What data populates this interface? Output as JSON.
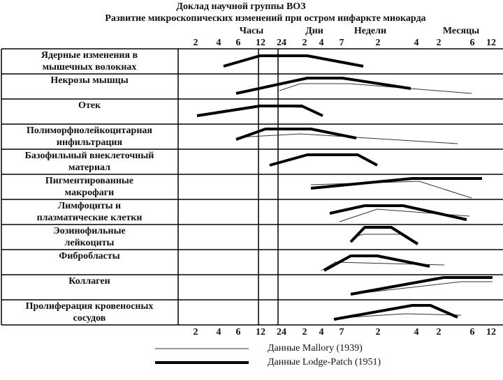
{
  "header": {
    "title": "Доклад научной группы ВОЗ",
    "subtitle": "Развитие микроскопических изменений при остром инфаркте миокарда"
  },
  "units": [
    "Часы",
    "Дни",
    "Недели",
    "Месяцы"
  ],
  "ticks": [
    "2",
    "4",
    "6",
    "12",
    "24",
    "2",
    "4",
    "7",
    "2",
    "4",
    "2",
    "6",
    "12"
  ],
  "rows": [
    "Ядерные изменения в мышечных волокнах",
    "Некрозы мышцы",
    "Отек",
    "Полиморфнолейкоцитарная инфильтрация",
    "Базофильный внеклеточный материал",
    "Пигментированные макрофаги",
    "Лимфоциты и плазматические клетки",
    "Эозинофильные лейкоциты",
    "Фибробласты",
    "Коллаген",
    "Пролиферация кровеносных сосудов"
  ],
  "legend": [
    "Данные Mallory (1939)",
    "Данные Lodge-Patch (1951)"
  ]
}
